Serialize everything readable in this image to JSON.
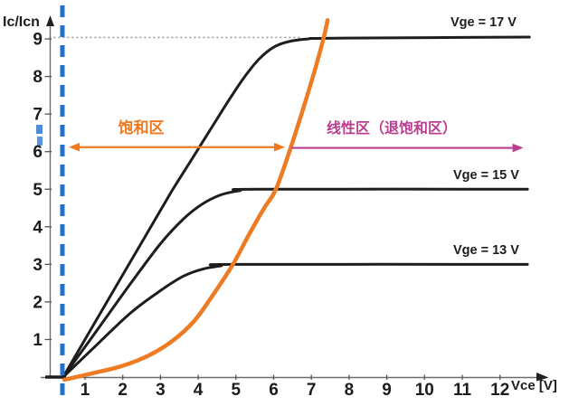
{
  "chart_data": {
    "type": "line",
    "xlabel": "Vce [V]",
    "ylabel": "Ic/Icn",
    "xlim": [
      0,
      13
    ],
    "ylim": [
      0,
      9.6
    ],
    "x_ticks": [
      1,
      2,
      3,
      4,
      5,
      6,
      7,
      8,
      9,
      10,
      11,
      12
    ],
    "y_ticks": [
      1,
      2,
      3,
      4,
      5,
      6,
      7,
      8,
      9
    ],
    "grid": "off",
    "legend": "inline-labels",
    "axis_color": "#6e6e6e",
    "series": [
      {
        "id": "curve-vge-17",
        "name": "Vge = 17 V",
        "color": "#1d1d1d",
        "width": 3,
        "points": [
          [
            0.42,
            0
          ],
          [
            1.0,
            1.0
          ],
          [
            1.8,
            2.38
          ],
          [
            2.6,
            3.75
          ],
          [
            3.3,
            4.95
          ],
          [
            3.8,
            5.75
          ],
          [
            4.3,
            6.55
          ],
          [
            4.8,
            7.35
          ],
          [
            5.2,
            7.95
          ],
          [
            5.6,
            8.45
          ],
          [
            6.0,
            8.78
          ],
          [
            6.4,
            8.93
          ],
          [
            6.9,
            9.0
          ],
          [
            7.6,
            9.02
          ],
          [
            12.78,
            9.05
          ]
        ]
      },
      {
        "id": "curve-vge-15",
        "name": "Vge = 15 V",
        "color": "#1d1d1d",
        "width": 3,
        "points": [
          [
            0.42,
            0
          ],
          [
            1.2,
            1.08
          ],
          [
            2.2,
            2.48
          ],
          [
            3.0,
            3.55
          ],
          [
            3.6,
            4.2
          ],
          [
            4.1,
            4.6
          ],
          [
            4.6,
            4.85
          ],
          [
            5.1,
            4.96
          ],
          [
            5.6,
            5.0
          ],
          [
            12.73,
            5.0
          ]
        ]
      },
      {
        "id": "curve-vge-13",
        "name": "Vge = 13 V",
        "color": "#1d1d1d",
        "width": 3,
        "points": [
          [
            0.42,
            0
          ],
          [
            1.2,
            0.75
          ],
          [
            2.2,
            1.7
          ],
          [
            3.0,
            2.3
          ],
          [
            3.6,
            2.68
          ],
          [
            4.1,
            2.87
          ],
          [
            4.6,
            2.96
          ],
          [
            5.0,
            3.0
          ],
          [
            12.73,
            3.0
          ]
        ]
      },
      {
        "id": "desaturation-curve",
        "name": "",
        "color": "#ee7a22",
        "width": 4.5,
        "points": [
          [
            0.45,
            -0.07
          ],
          [
            1.2,
            0.1
          ],
          [
            2.0,
            0.3
          ],
          [
            2.7,
            0.58
          ],
          [
            3.3,
            0.95
          ],
          [
            3.9,
            1.5
          ],
          [
            4.4,
            2.2
          ],
          [
            4.92,
            3.0
          ],
          [
            5.35,
            3.8
          ],
          [
            5.75,
            4.5
          ],
          [
            6.06,
            5.0
          ],
          [
            6.45,
            6.1
          ],
          [
            6.8,
            7.2
          ],
          [
            7.1,
            8.2
          ],
          [
            7.33,
            9.05
          ],
          [
            7.43,
            9.5
          ]
        ]
      }
    ],
    "annotations": [
      {
        "id": "saturation-region",
        "text": "饱和区",
        "color": "#f0791f",
        "arrow": {
          "y": 6.12,
          "x1": 0.57,
          "x2": 6.3,
          "heads": "both"
        }
      },
      {
        "id": "linear-region",
        "text": "线性区（退饱和区）",
        "color": "#bb3d90",
        "arrow": {
          "y": 6.1,
          "x1": 6.47,
          "x2": 12.62,
          "heads": "end"
        }
      },
      {
        "id": "vce-threshold-line",
        "type": "vline",
        "style": "dashed",
        "x": 0.4,
        "color": "#2271cf"
      },
      {
        "id": "max-current-guide",
        "type": "hline",
        "style": "dotted",
        "y": 9.04,
        "x1": 0.05,
        "x2": 6.72,
        "color": "#9a9a9a"
      }
    ]
  }
}
